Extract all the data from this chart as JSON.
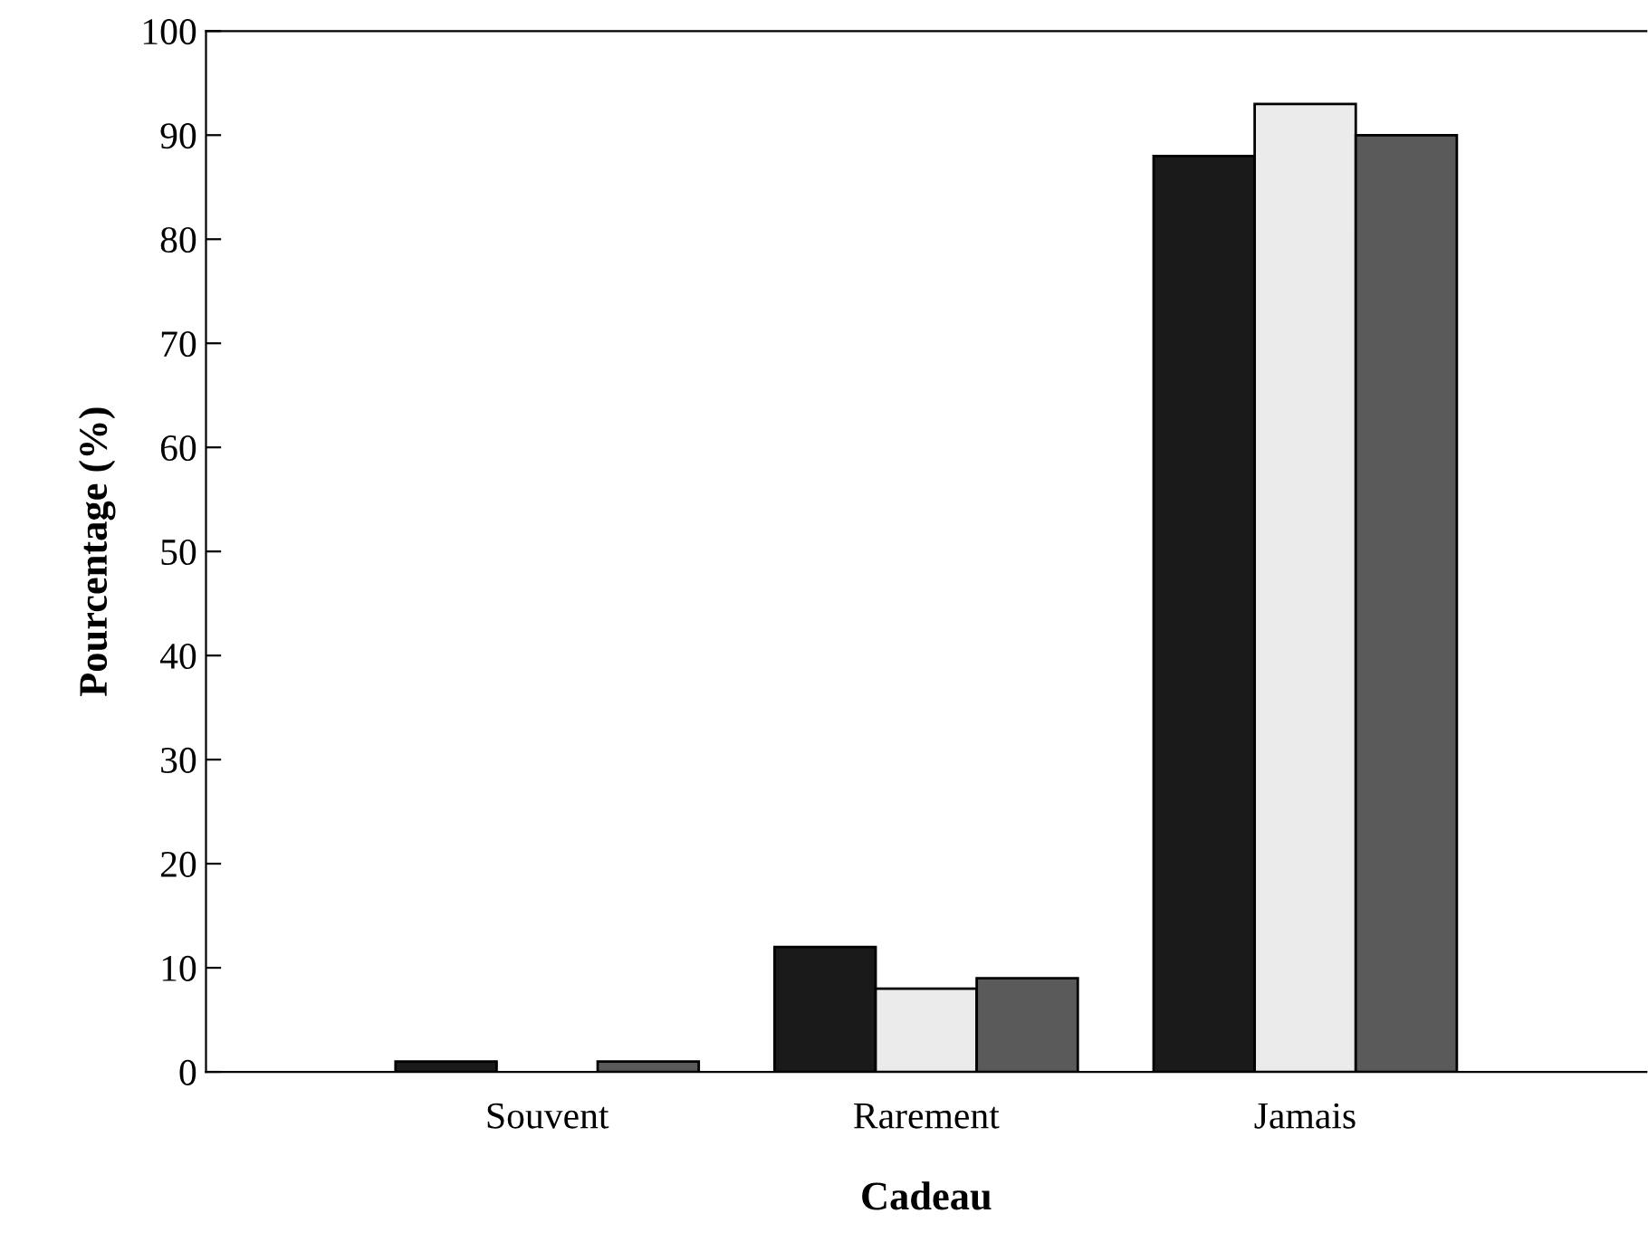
{
  "chart_data": {
    "type": "bar",
    "xlabel": "Cadeau",
    "ylabel": "Pourcentage (%)",
    "categories": [
      "Souvent",
      "Rarement",
      "Jamais"
    ],
    "series": [
      {
        "color": "#1a1a1a",
        "values": [
          1,
          12,
          88
        ]
      },
      {
        "color": "#ebebeb",
        "values": [
          0,
          8,
          93
        ]
      },
      {
        "color": "#5a5a5a",
        "values": [
          1,
          9,
          90
        ]
      }
    ],
    "ylim": [
      0,
      100
    ],
    "yticks": [
      0,
      10,
      20,
      30,
      40,
      50,
      60,
      70,
      80,
      90,
      100
    ],
    "grid": false
  }
}
